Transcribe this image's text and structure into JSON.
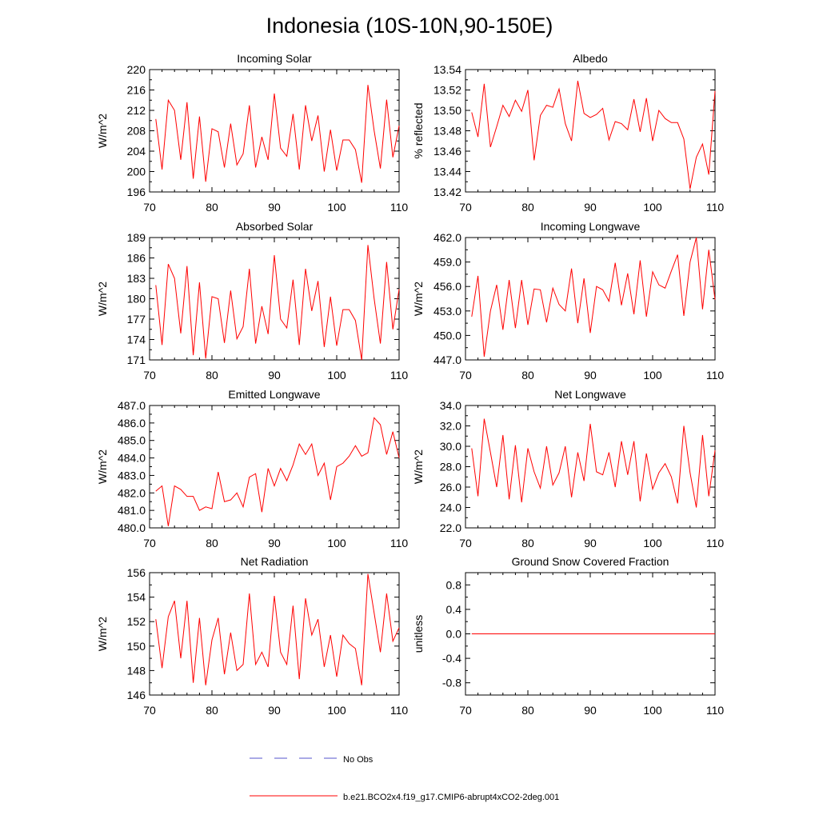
{
  "figure": {
    "title": "Indonesia (10S-10N,90-150E)"
  },
  "legend": {
    "entries": [
      {
        "label": "No Obs",
        "color": "#5555cc",
        "dash": true
      },
      {
        "label": "b.e21.BCO2x4.f19_g17.CMIP6-abrupt4xCO2-2deg.001",
        "color": "#ff0000",
        "dash": false
      }
    ]
  },
  "chart_data": [
    {
      "type": "line",
      "title": "Incoming Solar",
      "ylabel": "W/m^2",
      "xlabel": "",
      "xlim": [
        70,
        110
      ],
      "ylim": [
        196,
        220
      ],
      "xticks": [
        "70",
        "80",
        "90",
        "100",
        "110"
      ],
      "yticks": [
        "196",
        "200",
        "204",
        "208",
        "212",
        "216",
        "220"
      ],
      "series": [
        {
          "name": "b.e21.BCO2x4.f19_g17.CMIP6-abrupt4xCO2-2deg.001",
          "color": "#ff0000",
          "x": [
            71,
            72,
            73,
            74,
            75,
            76,
            77,
            78,
            79,
            80,
            81,
            82,
            83,
            84,
            85,
            86,
            87,
            88,
            89,
            90,
            91,
            92,
            93,
            94,
            95,
            96,
            97,
            98,
            99,
            100,
            101,
            102,
            103,
            104,
            105,
            106,
            107,
            108,
            109,
            110
          ],
          "values": [
            210.3,
            200.4,
            214.0,
            212.0,
            202.3,
            213.6,
            198.6,
            210.8,
            198.0,
            208.4,
            207.8,
            200.8,
            209.4,
            201.3,
            203.5,
            213.0,
            200.8,
            206.8,
            202.3,
            215.3,
            204.6,
            203.0,
            211.3,
            200.4,
            213.0,
            206.0,
            211.0,
            200.0,
            208.2,
            200.2,
            206.2,
            206.2,
            204.3,
            197.8,
            217.0,
            208.0,
            200.6,
            214.1,
            202.8,
            209.0
          ]
        }
      ]
    },
    {
      "type": "line",
      "title": "Albedo",
      "ylabel": "% reflected",
      "xlabel": "",
      "xlim": [
        70,
        110
      ],
      "ylim": [
        13.42,
        13.54
      ],
      "xticks": [
        "70",
        "80",
        "90",
        "100",
        "110"
      ],
      "yticks": [
        "13.42",
        "13.44",
        "13.46",
        "13.48",
        "13.50",
        "13.52",
        "13.54"
      ],
      "series": [
        {
          "name": "b.e21.BCO2x4.f19_g17.CMIP6-abrupt4xCO2-2deg.001",
          "color": "#ff0000",
          "x": [
            71,
            72,
            73,
            74,
            75,
            76,
            77,
            78,
            79,
            80,
            81,
            82,
            83,
            84,
            85,
            86,
            87,
            88,
            89,
            90,
            91,
            92,
            93,
            94,
            95,
            96,
            97,
            98,
            99,
            100,
            101,
            102,
            103,
            104,
            105,
            106,
            107,
            108,
            109,
            110
          ],
          "values": [
            13.498,
            13.474,
            13.526,
            13.464,
            13.484,
            13.505,
            13.494,
            13.51,
            13.499,
            13.52,
            13.451,
            13.495,
            13.505,
            13.503,
            13.521,
            13.487,
            13.47,
            13.529,
            13.497,
            13.493,
            13.496,
            13.502,
            13.471,
            13.489,
            13.487,
            13.481,
            13.511,
            13.479,
            13.512,
            13.47,
            13.5,
            13.492,
            13.488,
            13.488,
            13.472,
            13.423,
            13.454,
            13.467,
            13.437,
            13.519
          ]
        }
      ]
    },
    {
      "type": "line",
      "title": "Absorbed Solar",
      "ylabel": "W/m^2",
      "xlabel": "",
      "xlim": [
        70,
        110
      ],
      "ylim": [
        171,
        189
      ],
      "xticks": [
        "70",
        "80",
        "90",
        "100",
        "110"
      ],
      "yticks": [
        "171",
        "174",
        "177",
        "180",
        "183",
        "186",
        "189"
      ],
      "series": [
        {
          "name": "b.e21.BCO2x4.f19_g17.CMIP6-abrupt4xCO2-2deg.001",
          "color": "#ff0000",
          "x": [
            71,
            72,
            73,
            74,
            75,
            76,
            77,
            78,
            79,
            80,
            81,
            82,
            83,
            84,
            85,
            86,
            87,
            88,
            89,
            90,
            91,
            92,
            93,
            94,
            95,
            96,
            97,
            98,
            99,
            100,
            101,
            102,
            103,
            104,
            105,
            106,
            107,
            108,
            109,
            110
          ],
          "values": [
            182.0,
            173.2,
            185.1,
            183.0,
            174.9,
            184.8,
            171.7,
            182.4,
            171.2,
            180.3,
            180.0,
            173.5,
            181.2,
            174.1,
            175.9,
            184.4,
            173.4,
            178.9,
            174.8,
            186.4,
            177.0,
            175.7,
            182.8,
            173.2,
            184.4,
            178.2,
            182.6,
            172.9,
            180.3,
            173.1,
            178.4,
            178.4,
            176.8,
            171.0,
            187.9,
            180.0,
            173.4,
            185.4,
            175.5,
            181.4
          ]
        }
      ]
    },
    {
      "type": "line",
      "title": "Incoming Longwave",
      "ylabel": "W/m^2",
      "xlabel": "",
      "xlim": [
        70,
        110
      ],
      "ylim": [
        447.0,
        462.0
      ],
      "xticks": [
        "70",
        "80",
        "90",
        "100",
        "110"
      ],
      "yticks": [
        "447.0",
        "450.0",
        "453.0",
        "456.0",
        "459.0",
        "462.0"
      ],
      "series": [
        {
          "name": "b.e21.BCO2x4.f19_g17.CMIP6-abrupt4xCO2-2deg.001",
          "color": "#ff0000",
          "x": [
            71,
            72,
            73,
            74,
            75,
            76,
            77,
            78,
            79,
            80,
            81,
            82,
            83,
            84,
            85,
            86,
            87,
            88,
            89,
            90,
            91,
            92,
            93,
            94,
            95,
            96,
            97,
            98,
            99,
            100,
            101,
            102,
            103,
            104,
            105,
            106,
            107,
            108,
            109,
            110
          ],
          "values": [
            452.3,
            457.3,
            447.4,
            453.0,
            456.2,
            450.7,
            456.8,
            450.9,
            456.8,
            451.3,
            455.7,
            455.6,
            451.6,
            455.8,
            453.8,
            453.0,
            458.2,
            451.5,
            457.0,
            450.3,
            456.0,
            455.6,
            454.2,
            458.9,
            453.7,
            457.6,
            452.6,
            459.2,
            452.3,
            457.8,
            456.2,
            455.8,
            457.9,
            459.9,
            452.4,
            459.0,
            462.0,
            453.2,
            460.5,
            454.4
          ]
        }
      ]
    },
    {
      "type": "line",
      "title": "Emitted Longwave",
      "ylabel": "W/m^2",
      "xlabel": "",
      "xlim": [
        70,
        110
      ],
      "ylim": [
        480.0,
        487.0
      ],
      "xticks": [
        "70",
        "80",
        "90",
        "100",
        "110"
      ],
      "yticks": [
        "480.0",
        "481.0",
        "482.0",
        "483.0",
        "484.0",
        "485.0",
        "486.0",
        "487.0"
      ],
      "series": [
        {
          "name": "b.e21.BCO2x4.f19_g17.CMIP6-abrupt4xCO2-2deg.001",
          "color": "#ff0000",
          "x": [
            71,
            72,
            73,
            74,
            75,
            76,
            77,
            78,
            79,
            80,
            81,
            82,
            83,
            84,
            85,
            86,
            87,
            88,
            89,
            90,
            91,
            92,
            93,
            94,
            95,
            96,
            97,
            98,
            99,
            100,
            101,
            102,
            103,
            104,
            105,
            106,
            107,
            108,
            109,
            110
          ],
          "values": [
            482.1,
            482.4,
            480.1,
            482.4,
            482.2,
            481.8,
            481.8,
            481.0,
            481.2,
            481.1,
            483.2,
            481.5,
            481.6,
            482.0,
            481.2,
            482.9,
            483.1,
            480.9,
            483.4,
            482.4,
            483.4,
            482.7,
            483.6,
            484.8,
            484.2,
            484.8,
            483.0,
            483.7,
            481.6,
            483.5,
            483.7,
            484.1,
            484.7,
            484.1,
            484.3,
            486.3,
            485.9,
            484.2,
            485.5,
            484.0
          ]
        }
      ]
    },
    {
      "type": "line",
      "title": "Net Longwave",
      "ylabel": "W/m^2",
      "xlabel": "",
      "xlim": [
        70,
        110
      ],
      "ylim": [
        22.0,
        34.0
      ],
      "xticks": [
        "70",
        "80",
        "90",
        "100",
        "110"
      ],
      "yticks": [
        "22.0",
        "24.0",
        "26.0",
        "28.0",
        "30.0",
        "32.0",
        "34.0"
      ],
      "series": [
        {
          "name": "b.e21.BCO2x4.f19_g17.CMIP6-abrupt4xCO2-2deg.001",
          "color": "#ff0000",
          "x": [
            71,
            72,
            73,
            74,
            75,
            76,
            77,
            78,
            79,
            80,
            81,
            82,
            83,
            84,
            85,
            86,
            87,
            88,
            89,
            90,
            91,
            92,
            93,
            94,
            95,
            96,
            97,
            98,
            99,
            100,
            101,
            102,
            103,
            104,
            105,
            106,
            107,
            108,
            109,
            110
          ],
          "values": [
            29.8,
            25.1,
            32.7,
            29.4,
            26.0,
            31.1,
            24.8,
            30.1,
            24.5,
            29.8,
            27.5,
            25.9,
            30.0,
            26.2,
            27.4,
            30.0,
            25.0,
            29.4,
            26.6,
            32.2,
            27.5,
            27.2,
            29.4,
            26.0,
            30.5,
            27.2,
            30.5,
            24.6,
            29.3,
            25.8,
            27.4,
            28.3,
            27.0,
            24.4,
            32.0,
            27.4,
            24.0,
            31.1,
            25.1,
            29.6
          ]
        }
      ]
    },
    {
      "type": "line",
      "title": "Net Radiation",
      "ylabel": "W/m^2",
      "xlabel": "",
      "xlim": [
        70,
        110
      ],
      "ylim": [
        146,
        156
      ],
      "xticks": [
        "70",
        "80",
        "90",
        "100",
        "110"
      ],
      "yticks": [
        "146",
        "148",
        "150",
        "152",
        "154",
        "156"
      ],
      "series": [
        {
          "name": "b.e21.BCO2x4.f19_g17.CMIP6-abrupt4xCO2-2deg.001",
          "color": "#ff0000",
          "x": [
            71,
            72,
            73,
            74,
            75,
            76,
            77,
            78,
            79,
            80,
            81,
            82,
            83,
            84,
            85,
            86,
            87,
            88,
            89,
            90,
            91,
            92,
            93,
            94,
            95,
            96,
            97,
            98,
            99,
            100,
            101,
            102,
            103,
            104,
            105,
            106,
            107,
            108,
            109,
            110
          ],
          "values": [
            152.2,
            148.2,
            152.4,
            153.7,
            149.0,
            153.7,
            147.0,
            152.3,
            146.8,
            150.5,
            152.3,
            147.7,
            151.1,
            148.0,
            148.5,
            154.3,
            148.5,
            149.5,
            148.3,
            154.1,
            149.5,
            148.5,
            153.3,
            147.3,
            153.9,
            150.9,
            152.2,
            148.3,
            150.9,
            147.5,
            150.9,
            150.2,
            149.8,
            146.8,
            155.9,
            152.7,
            149.5,
            154.3,
            150.4,
            151.5
          ]
        }
      ]
    },
    {
      "type": "line",
      "title": "Ground Snow Covered Fraction",
      "ylabel": "unitless",
      "xlabel": "",
      "xlim": [
        70,
        110
      ],
      "ylim": [
        -1.0,
        1.0
      ],
      "xticks": [
        "70",
        "80",
        "90",
        "100",
        "110"
      ],
      "yticks": [
        "-0.8",
        "-0.4",
        "0.0",
        "0.4",
        "0.8"
      ],
      "yticks_values": [
        -0.8,
        -0.4,
        0.0,
        0.4,
        0.8
      ],
      "series": [
        {
          "name": "b.e21.BCO2x4.f19_g17.CMIP6-abrupt4xCO2-2deg.001",
          "color": "#ff0000",
          "x": [
            71,
            110
          ],
          "values": [
            0.0,
            0.0
          ]
        }
      ]
    }
  ]
}
